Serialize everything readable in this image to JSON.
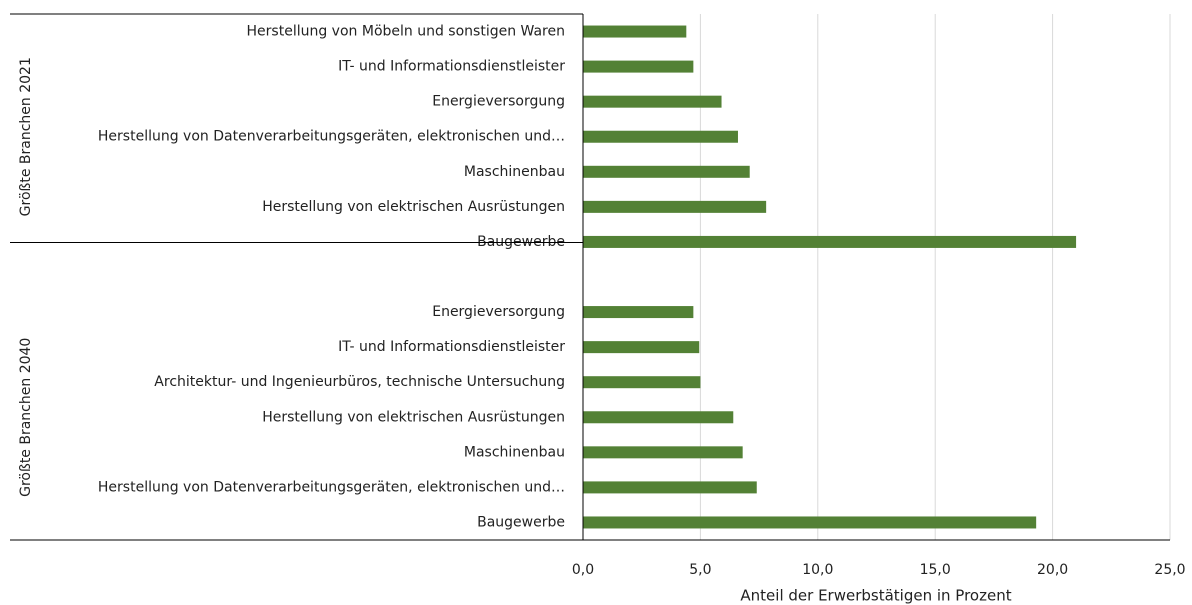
{
  "chart_data": {
    "type": "bar",
    "orientation": "horizontal",
    "color": "#538135",
    "xlabel": "Anteil der Erwerbstätigen in Prozent",
    "xlim": [
      0,
      25
    ],
    "xticks": [
      {
        "value": 0,
        "label": "0,0"
      },
      {
        "value": 5,
        "label": "5,0"
      },
      {
        "value": 10,
        "label": "10,0"
      },
      {
        "value": 15,
        "label": "15,0"
      },
      {
        "value": 20,
        "label": "20,0"
      },
      {
        "value": 25,
        "label": "25,0"
      }
    ],
    "grid": true,
    "groups": [
      {
        "name": "Größte Branchen 2021",
        "categories": [
          "Herstellung von Möbeln und sonstigen Waren",
          "IT- und Informationsdienstleister",
          "Energieversorgung",
          "Herstellung von Datenverarbeitungsgeräten, elektronischen und…",
          "Maschinenbau",
          "Herstellung von elektrischen Ausrüstungen",
          "Baugewerbe"
        ],
        "values": [
          4.4,
          4.7,
          5.9,
          6.6,
          7.1,
          7.8,
          21.0
        ]
      },
      {
        "name": "Größte Branchen 2040",
        "categories": [
          "Energieversorgung",
          "IT- und Informationsdienstleister",
          "Architektur- und Ingenieurbüros, technische Untersuchung",
          "Herstellung von elektrischen Ausrüstungen",
          "Maschinenbau",
          "Herstellung von Datenverarbeitungsgeräten, elektronischen und…",
          "Baugewerbe"
        ],
        "values": [
          4.7,
          4.95,
          5.0,
          6.4,
          6.8,
          7.4,
          19.3
        ]
      }
    ]
  }
}
